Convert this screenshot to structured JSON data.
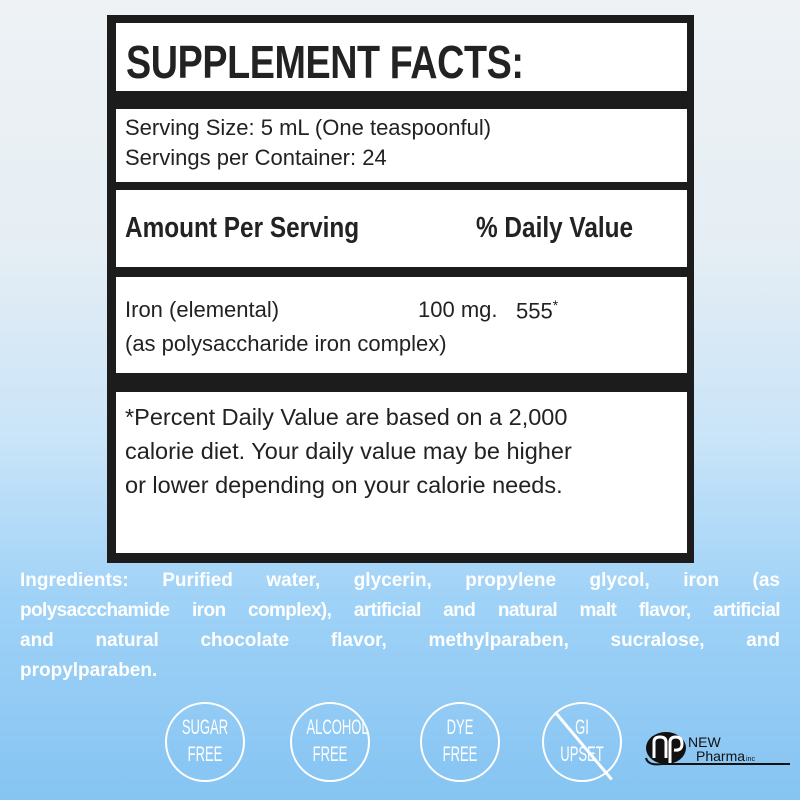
{
  "label": {
    "title": "SUPPLEMENT FACTS:",
    "serving_size": "Serving Size: 5 mL (One teaspoonful)",
    "servings_per_container": "Servings per Container: 24",
    "amount_header": "Amount Per Serving",
    "dv_header": "% Daily Value",
    "nutrient_name": "Iron (elemental)",
    "nutrient_amount": "100 mg.",
    "nutrient_dv": "555",
    "nutrient_dv_mark": "*",
    "nutrient_source": "(as polysaccharide iron complex)",
    "footnote_lines": [
      "*Percent Daily Value are based on a 2,000",
      "calorie diet.  Your daily value may be higher",
      "or lower depending on your calorie needs."
    ]
  },
  "ingredients_lines": [
    "Ingredients: Purified water, glycerin, propylene glycol, iron (as",
    "polysaccchamide iron complex), artificial and natural malt flavor, artificial",
    "and natural chocolate flavor, methylparaben, sucralose, and",
    "propylparaben."
  ],
  "badges": [
    {
      "line1": "SUGAR",
      "line2": "FREE",
      "crossed": false
    },
    {
      "line1": "ALCOHOL",
      "line2": "FREE",
      "crossed": false
    },
    {
      "line1": "DYE",
      "line2": "FREE",
      "crossed": false
    },
    {
      "line1": "GI",
      "line2": "UPSET",
      "crossed": true
    }
  ],
  "logo": {
    "mark": "np",
    "line1": "NEW",
    "line2": "Pharma",
    "suffix": "inc"
  },
  "colors": {
    "label_border": "#1c1c1c",
    "text": "#222222",
    "badge": "#ffffff",
    "bg_bottom": "#86c4f2"
  }
}
